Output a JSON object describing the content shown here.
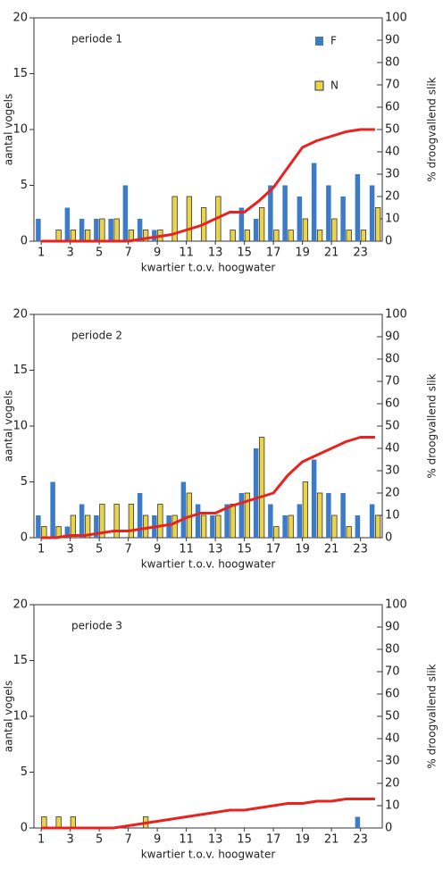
{
  "chart_data": [
    {
      "type": "bar",
      "title": "periode 1",
      "xlabel": "kwartier t.o.v. hoogwater",
      "ylabel": "aantal vogels",
      "y2label": "% droogvallend slik",
      "categories": [
        1,
        null,
        3,
        null,
        5,
        null,
        7,
        null,
        9,
        null,
        11,
        null,
        13,
        null,
        15,
        null,
        17,
        null,
        19,
        null,
        21,
        null,
        23,
        null
      ],
      "series": [
        {
          "name": "F",
          "color": "#3b7bc8",
          "values": [
            2,
            0,
            3,
            2,
            2,
            2,
            5,
            2,
            1,
            0,
            0,
            0,
            0,
            0,
            3,
            2,
            5,
            5,
            4,
            7,
            5,
            4,
            6,
            5
          ]
        },
        {
          "name": "N",
          "color": "#ead44a",
          "values": [
            0,
            1,
            1,
            1,
            2,
            2,
            1,
            1,
            1,
            4,
            4,
            3,
            4,
            1,
            1,
            3,
            1,
            1,
            2,
            1,
            2,
            1,
            1,
            3
          ]
        },
        {
          "type": "line",
          "axis": "y2",
          "color": "#e8231e",
          "values": [
            0,
            0,
            0,
            0,
            0,
            0,
            0,
            1,
            2,
            3,
            5,
            7,
            10,
            13,
            13,
            18,
            24,
            33,
            42,
            45,
            47,
            49,
            50,
            50
          ]
        }
      ],
      "ylim": [
        0,
        20
      ],
      "yticks": [
        0,
        5,
        10,
        15,
        20
      ],
      "y2lim": [
        0,
        100
      ],
      "y2ticks": [
        0,
        10,
        20,
        30,
        40,
        50,
        60,
        70,
        80,
        90,
        100
      ],
      "legend": "top right"
    },
    {
      "type": "bar",
      "title": "periode 2",
      "xlabel": "kwartier t.o.v. hoogwater",
      "ylabel": "aantal vogels",
      "y2label": "% droogvallend slik",
      "categories": [
        1,
        null,
        3,
        null,
        5,
        null,
        7,
        null,
        9,
        null,
        11,
        null,
        13,
        null,
        15,
        null,
        17,
        null,
        19,
        null,
        21,
        null,
        23,
        null
      ],
      "series": [
        {
          "color": "#3b7bc8",
          "values": [
            2,
            5,
            1,
            3,
            2,
            0,
            0,
            4,
            2,
            2,
            5,
            3,
            2,
            3,
            4,
            8,
            3,
            2,
            3,
            7,
            4,
            4,
            2,
            3
          ]
        },
        {
          "color": "#ead44a",
          "values": [
            1,
            1,
            2,
            2,
            3,
            3,
            3,
            2,
            3,
            2,
            4,
            2,
            2,
            3,
            4,
            9,
            1,
            2,
            5,
            4,
            2,
            1,
            0,
            2
          ]
        },
        {
          "type": "line",
          "axis": "y2",
          "color": "#e8231e",
          "values": [
            0,
            0,
            1,
            1,
            2,
            3,
            3,
            4,
            5,
            6,
            9,
            11,
            11,
            14,
            16,
            18,
            20,
            28,
            34,
            37,
            40,
            43,
            45,
            45
          ]
        }
      ],
      "ylim": [
        0,
        20
      ],
      "yticks": [
        0,
        5,
        10,
        15,
        20
      ],
      "y2lim": [
        0,
        100
      ],
      "y2ticks": [
        0,
        10,
        20,
        30,
        40,
        50,
        60,
        70,
        80,
        90,
        100
      ]
    },
    {
      "type": "bar",
      "title": "periode 3",
      "xlabel": "kwartier t.o.v. hoogwater",
      "ylabel": "aantal vogels",
      "y2label": "% droogvallend slik",
      "categories": [
        1,
        null,
        3,
        null,
        5,
        null,
        7,
        null,
        9,
        null,
        11,
        null,
        13,
        null,
        15,
        null,
        17,
        null,
        19,
        null,
        21,
        null,
        23,
        null
      ],
      "series": [
        {
          "color": "#3b7bc8",
          "values": [
            0,
            0,
            0,
            0,
            0,
            0,
            0,
            0,
            0,
            0,
            0,
            0,
            0,
            0,
            0,
            0,
            0,
            0,
            0,
            0,
            0,
            0,
            1,
            0
          ]
        },
        {
          "color": "#ead44a",
          "values": [
            1,
            1,
            1,
            0,
            0,
            0,
            0,
            1,
            0,
            0,
            0,
            0,
            0,
            0,
            0,
            0,
            0,
            0,
            0,
            0,
            0,
            0,
            0,
            0
          ]
        },
        {
          "type": "line",
          "axis": "y2",
          "color": "#e8231e",
          "values": [
            0,
            0,
            0,
            0,
            0,
            0,
            1,
            2,
            3,
            4,
            5,
            6,
            7,
            8,
            8,
            9,
            10,
            11,
            11,
            12,
            12,
            13,
            13,
            13
          ]
        }
      ],
      "ylim": [
        0,
        20
      ],
      "yticks": [
        0,
        5,
        10,
        15,
        20
      ],
      "y2lim": [
        0,
        100
      ],
      "y2ticks": [
        0,
        10,
        20,
        30,
        40,
        50,
        60,
        70,
        80,
        90,
        100
      ]
    }
  ]
}
